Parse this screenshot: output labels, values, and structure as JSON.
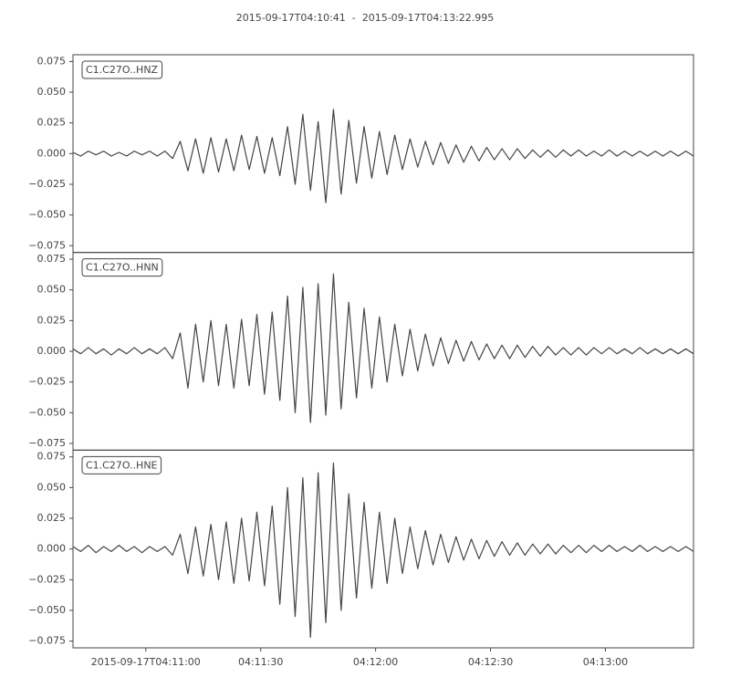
{
  "chart_data": [
    {
      "type": "line",
      "title": "2015-09-17T04:10:41  -  2015-09-17T04:13:22.995",
      "label": "C1.C27O..HNZ",
      "color": "#444444",
      "x": [
        0,
        2,
        4,
        6,
        8,
        10,
        12,
        14,
        16,
        18,
        20,
        22,
        24,
        26,
        28,
        30,
        32,
        34,
        36,
        38,
        40,
        42,
        44,
        46,
        48,
        50,
        52,
        54,
        56,
        58,
        60,
        62,
        64,
        66,
        68,
        70,
        72,
        74,
        76,
        78,
        80,
        82,
        84,
        86,
        88,
        90,
        92,
        94,
        96,
        98,
        100,
        102,
        104,
        106,
        108,
        110,
        112,
        114,
        116,
        118,
        120,
        122,
        124,
        126,
        128,
        130,
        132,
        134,
        136,
        138,
        140,
        142,
        144,
        146,
        148,
        150,
        152,
        154,
        156,
        158,
        160,
        162
      ],
      "values": [
        0.001,
        -0.002,
        0.002,
        -0.001,
        0.002,
        -0.002,
        0.001,
        -0.002,
        0.002,
        -0.001,
        0.002,
        -0.002,
        0.002,
        -0.004,
        0.01,
        -0.014,
        0.012,
        -0.016,
        0.013,
        -0.015,
        0.012,
        -0.014,
        0.015,
        -0.013,
        0.014,
        -0.016,
        0.013,
        -0.018,
        0.022,
        -0.025,
        0.032,
        -0.03,
        0.026,
        -0.04,
        0.036,
        -0.033,
        0.027,
        -0.024,
        0.022,
        -0.02,
        0.018,
        -0.017,
        0.015,
        -0.013,
        0.012,
        -0.011,
        0.01,
        -0.009,
        0.009,
        -0.008,
        0.007,
        -0.007,
        0.006,
        -0.006,
        0.005,
        -0.005,
        0.004,
        -0.005,
        0.004,
        -0.004,
        0.003,
        -0.003,
        0.003,
        -0.003,
        0.003,
        -0.002,
        0.003,
        -0.002,
        0.002,
        -0.002,
        0.003,
        -0.002,
        0.002,
        -0.002,
        0.002,
        -0.002,
        0.002,
        -0.002,
        0.002,
        -0.002,
        0.002,
        -0.002
      ],
      "xlim": [
        0,
        161.995
      ],
      "ylim": [
        -0.0805,
        0.0805
      ],
      "yticks": [
        {
          "value": 0.075,
          "label": "0.075"
        },
        {
          "value": 0.05,
          "label": "0.050"
        },
        {
          "value": 0.025,
          "label": "0.025"
        },
        {
          "value": 0,
          "label": "0.000"
        },
        {
          "value": -0.025,
          "label": "−0.025"
        },
        {
          "value": -0.05,
          "label": "−0.050"
        },
        {
          "value": -0.075,
          "label": "−0.075"
        }
      ]
    },
    {
      "type": "line",
      "label": "C1.C27O..HNN",
      "color": "#444444",
      "x": [
        0,
        2,
        4,
        6,
        8,
        10,
        12,
        14,
        16,
        18,
        20,
        22,
        24,
        26,
        28,
        30,
        32,
        34,
        36,
        38,
        40,
        42,
        44,
        46,
        48,
        50,
        52,
        54,
        56,
        58,
        60,
        62,
        64,
        66,
        68,
        70,
        72,
        74,
        76,
        78,
        80,
        82,
        84,
        86,
        88,
        90,
        92,
        94,
        96,
        98,
        100,
        102,
        104,
        106,
        108,
        110,
        112,
        114,
        116,
        118,
        120,
        122,
        124,
        126,
        128,
        130,
        132,
        134,
        136,
        138,
        140,
        142,
        144,
        146,
        148,
        150,
        152,
        154,
        156,
        158,
        160,
        162
      ],
      "values": [
        0.002,
        -0.002,
        0.003,
        -0.002,
        0.002,
        -0.003,
        0.002,
        -0.002,
        0.003,
        -0.002,
        0.002,
        -0.002,
        0.003,
        -0.006,
        0.015,
        -0.03,
        0.022,
        -0.025,
        0.025,
        -0.028,
        0.022,
        -0.03,
        0.026,
        -0.028,
        0.03,
        -0.035,
        0.032,
        -0.04,
        0.045,
        -0.05,
        0.052,
        -0.058,
        0.055,
        -0.052,
        0.063,
        -0.047,
        0.04,
        -0.038,
        0.035,
        -0.03,
        0.028,
        -0.025,
        0.022,
        -0.02,
        0.018,
        -0.016,
        0.014,
        -0.012,
        0.011,
        -0.01,
        0.009,
        -0.008,
        0.008,
        -0.007,
        0.006,
        -0.006,
        0.005,
        -0.006,
        0.005,
        -0.005,
        0.004,
        -0.004,
        0.004,
        -0.003,
        0.003,
        -0.003,
        0.003,
        -0.003,
        0.003,
        -0.002,
        0.003,
        -0.002,
        0.002,
        -0.002,
        0.003,
        -0.002,
        0.002,
        -0.002,
        0.002,
        -0.002,
        0.002,
        -0.002
      ],
      "xlim": [
        0,
        161.995
      ],
      "ylim": [
        -0.0805,
        0.0805
      ],
      "yticks": [
        {
          "value": 0.075,
          "label": "0.075"
        },
        {
          "value": 0.05,
          "label": "0.050"
        },
        {
          "value": 0.025,
          "label": "0.025"
        },
        {
          "value": 0,
          "label": "0.000"
        },
        {
          "value": -0.025,
          "label": "−0.025"
        },
        {
          "value": -0.05,
          "label": "−0.050"
        },
        {
          "value": -0.075,
          "label": "−0.075"
        }
      ]
    },
    {
      "type": "line",
      "label": "C1.C27O..HNE",
      "color": "#444444",
      "x": [
        0,
        2,
        4,
        6,
        8,
        10,
        12,
        14,
        16,
        18,
        20,
        22,
        24,
        26,
        28,
        30,
        32,
        34,
        36,
        38,
        40,
        42,
        44,
        46,
        48,
        50,
        52,
        54,
        56,
        58,
        60,
        62,
        64,
        66,
        68,
        70,
        72,
        74,
        76,
        78,
        80,
        82,
        84,
        86,
        88,
        90,
        92,
        94,
        96,
        98,
        100,
        102,
        104,
        106,
        108,
        110,
        112,
        114,
        116,
        118,
        120,
        122,
        124,
        126,
        128,
        130,
        132,
        134,
        136,
        138,
        140,
        142,
        144,
        146,
        148,
        150,
        152,
        154,
        156,
        158,
        160,
        162
      ],
      "values": [
        0.002,
        -0.002,
        0.003,
        -0.003,
        0.002,
        -0.002,
        0.003,
        -0.002,
        0.002,
        -0.003,
        0.002,
        -0.002,
        0.002,
        -0.005,
        0.012,
        -0.02,
        0.018,
        -0.022,
        0.02,
        -0.025,
        0.022,
        -0.028,
        0.025,
        -0.026,
        0.03,
        -0.03,
        0.035,
        -0.045,
        0.05,
        -0.055,
        0.058,
        -0.072,
        0.062,
        -0.06,
        0.07,
        -0.05,
        0.045,
        -0.04,
        0.038,
        -0.032,
        0.03,
        -0.028,
        0.025,
        -0.02,
        0.018,
        -0.016,
        0.015,
        -0.013,
        0.012,
        -0.011,
        0.01,
        -0.009,
        0.008,
        -0.008,
        0.007,
        -0.006,
        0.006,
        -0.005,
        0.005,
        -0.005,
        0.004,
        -0.004,
        0.004,
        -0.004,
        0.003,
        -0.003,
        0.003,
        -0.003,
        0.003,
        -0.002,
        0.003,
        -0.002,
        0.002,
        -0.002,
        0.003,
        -0.002,
        0.002,
        -0.002,
        0.002,
        -0.002,
        0.002,
        -0.002
      ],
      "xlim": [
        0,
        161.995
      ],
      "ylim": [
        -0.0805,
        0.0805
      ],
      "yticks": [
        {
          "value": 0.075,
          "label": "0.075"
        },
        {
          "value": 0.05,
          "label": "0.050"
        },
        {
          "value": 0.025,
          "label": "0.025"
        },
        {
          "value": 0,
          "label": "0.000"
        },
        {
          "value": -0.025,
          "label": "−0.025"
        },
        {
          "value": -0.05,
          "label": "−0.050"
        },
        {
          "value": -0.075,
          "label": "−0.075"
        }
      ],
      "xticks": [
        {
          "value": 19,
          "label": "2015-09-17T04:11:00"
        },
        {
          "value": 49,
          "label": "04:11:30"
        },
        {
          "value": 79,
          "label": "04:12:00"
        },
        {
          "value": 109,
          "label": "04:12:30"
        },
        {
          "value": 139,
          "label": "04:13:00"
        }
      ]
    }
  ]
}
